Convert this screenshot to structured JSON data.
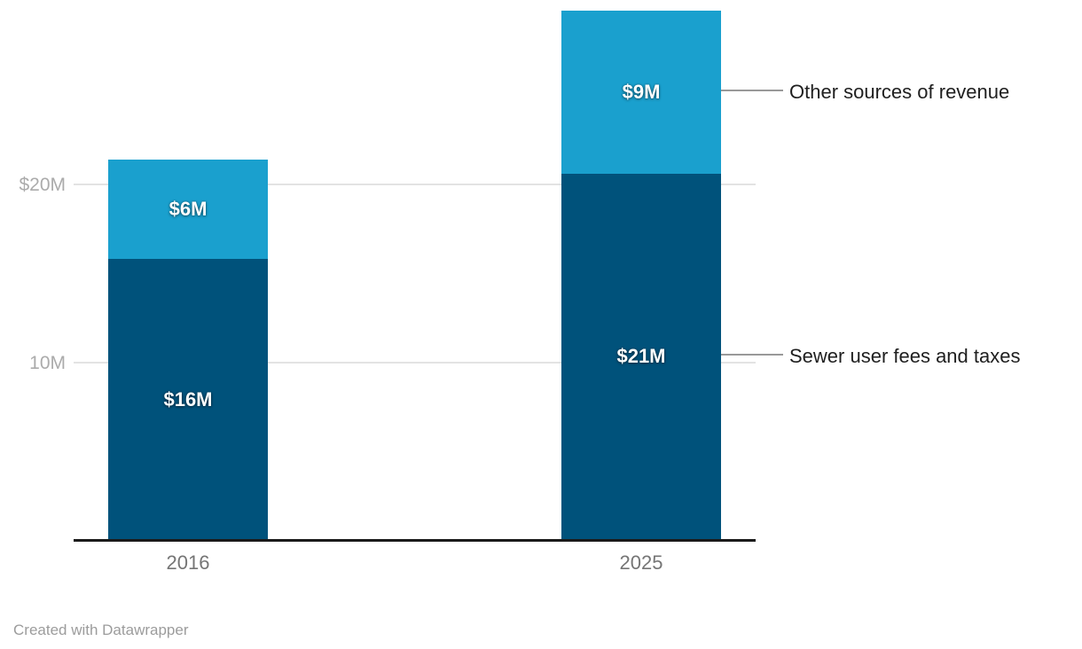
{
  "chart_data": {
    "type": "bar",
    "variant": "stacked-column",
    "title": "",
    "categories": [
      "2016",
      "2025"
    ],
    "series": [
      {
        "name": "Sewer user fees and taxes",
        "color": "#00527b",
        "values": [
          15.8,
          20.6
        ],
        "bar_labels": [
          "$16M",
          "$21M"
        ]
      },
      {
        "name": "Other sources of revenue",
        "color": "#1aa0ce",
        "values": [
          5.6,
          9.2
        ],
        "bar_labels": [
          "$6M",
          "$9M"
        ]
      }
    ],
    "y_axis": {
      "unit": "millions of dollars",
      "range": [
        0,
        30
      ],
      "grid": true,
      "ticks": [
        {
          "value": 20,
          "label": "$20M"
        },
        {
          "value": 10,
          "label": "10M"
        }
      ]
    },
    "legend_annotations": [
      {
        "text": "Other sources of revenue",
        "series_index": 1,
        "anchor_category": "2025"
      },
      {
        "text": "Sewer user fees and taxes",
        "series_index": 0,
        "anchor_category": "2025"
      }
    ],
    "colors": {
      "grid": "#e3e3e3",
      "axis_line": "#1a1a1a",
      "tick_label": "#ababab",
      "category_label": "#757575",
      "annotation_line": "#999999",
      "annotation_text": "#1f1f1f",
      "bar_label": "#ffffff",
      "background": "#ffffff"
    },
    "legend_position": "right-annotations"
  },
  "footer": {
    "credit": "Created with Datawrapper"
  }
}
